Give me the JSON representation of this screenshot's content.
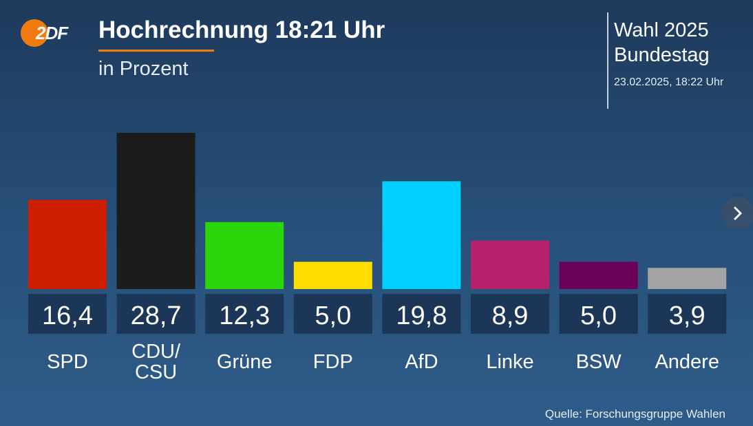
{
  "brand": {
    "logo_text": "2DF",
    "logo_color": "#f07c10"
  },
  "header": {
    "title": "Hochrechnung 18:21 Uhr",
    "subtitle": "in Prozent",
    "election_line1": "Wahl 2025",
    "election_line2": "Bundestag",
    "timestamp": "23.02.2025, 18:22 Uhr"
  },
  "footer": {
    "source": "Quelle: Forschungsgruppe Wahlen"
  },
  "controls": {
    "next_icon": "chevron-right-icon"
  },
  "chart_data": {
    "type": "bar",
    "categories": [
      "SPD",
      "CDU/ CSU",
      "Grüne",
      "FDP",
      "AfD",
      "Linke",
      "BSW",
      "Andere"
    ],
    "category_label_lines": [
      [
        "SPD"
      ],
      [
        "CDU/",
        "CSU"
      ],
      [
        "Grüne"
      ],
      [
        "FDP"
      ],
      [
        "AfD"
      ],
      [
        "Linke"
      ],
      [
        "BSW"
      ],
      [
        "Andere"
      ]
    ],
    "values": [
      16.4,
      28.7,
      12.3,
      5.0,
      19.8,
      8.9,
      5.0,
      3.9
    ],
    "value_labels": [
      "16,4",
      "28,7",
      "12,3",
      "5,0",
      "19,8",
      "8,9",
      "5,0",
      "3,9"
    ],
    "colors": [
      "#cc1e00",
      "#1c1c1c",
      "#2bd60b",
      "#ffdd00",
      "#00d0ff",
      "#b6226a",
      "#6a0058",
      "#a3a3a3"
    ],
    "value_box_color": "#1b3656",
    "ylim": [
      0,
      28.7
    ]
  }
}
